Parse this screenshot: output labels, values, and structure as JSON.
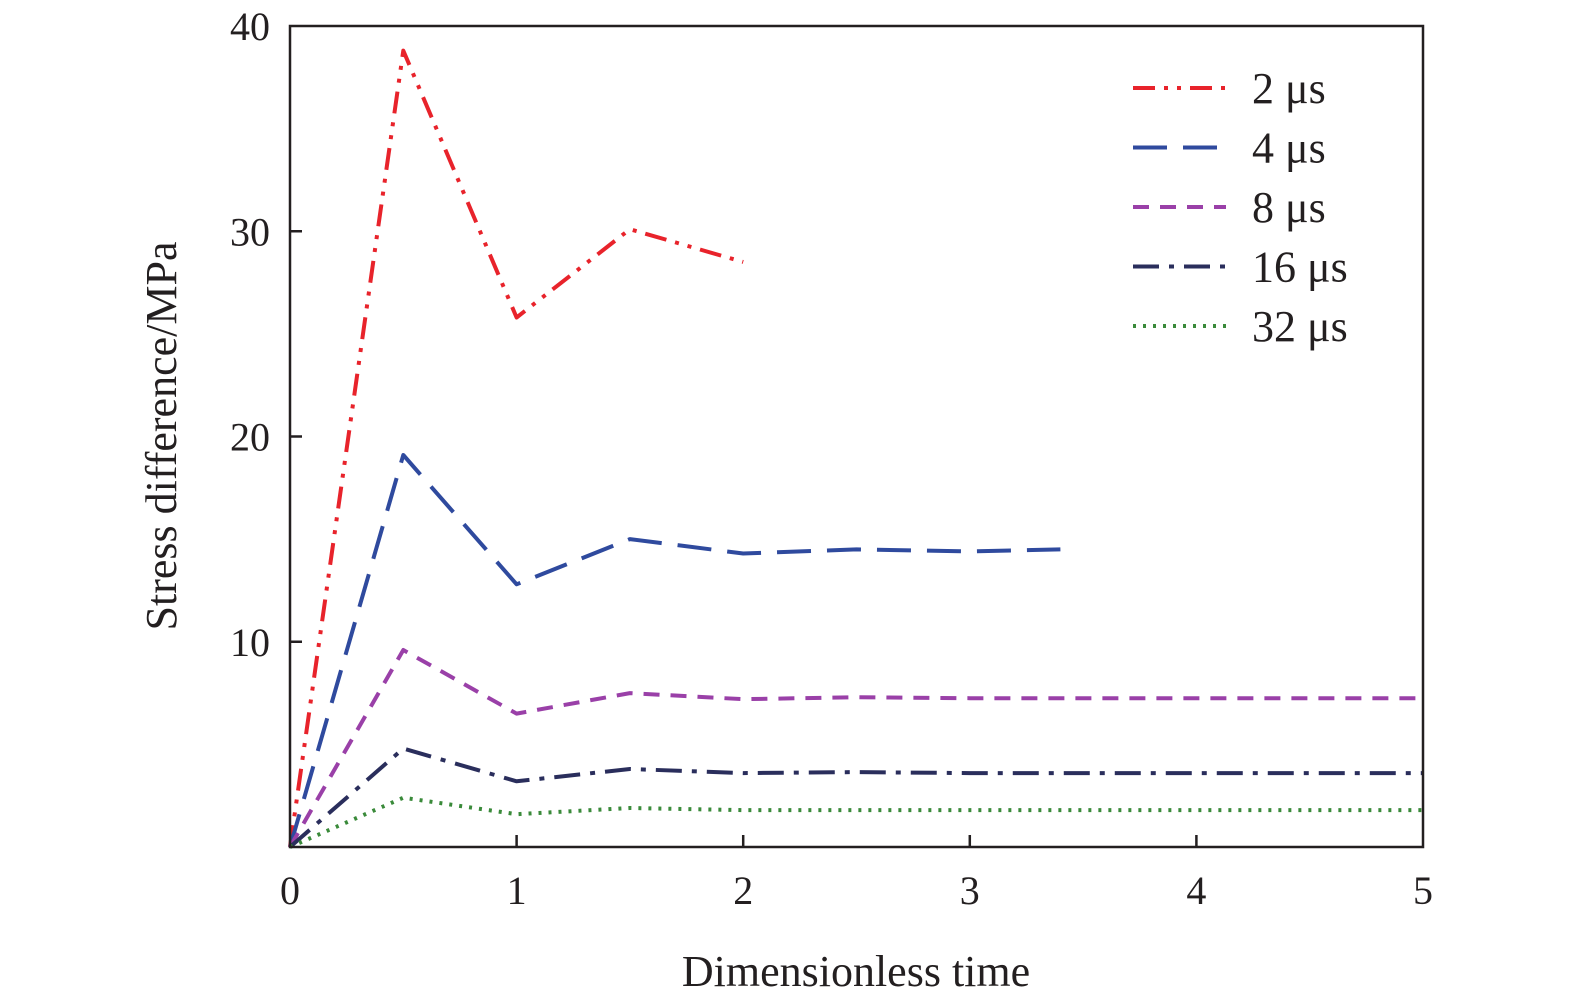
{
  "chart_data": {
    "type": "line",
    "title": "",
    "xlabel": "Dimensionless time",
    "ylabel": "Stress difference/MPa",
    "xlim": [
      0,
      5
    ],
    "ylim": [
      0,
      40
    ],
    "x_ticks": [
      "0",
      "1",
      "2",
      "3",
      "4",
      "5"
    ],
    "y_ticks": [
      "10",
      "20",
      "30",
      "40"
    ],
    "grid": false,
    "legend_position": "top-right",
    "series": [
      {
        "name": "2 μs",
        "color": "#e8232b",
        "style": "dash-dot-dot",
        "x": [
          0,
          0.5,
          1.0,
          1.5,
          2.0
        ],
        "y": [
          0,
          38.8,
          25.8,
          30.1,
          28.5
        ]
      },
      {
        "name": "4 μs",
        "color": "#2f4a9e",
        "style": "long-dash",
        "x": [
          0,
          0.5,
          1.0,
          1.5,
          2.0,
          2.5,
          3.0,
          3.4
        ],
        "y": [
          0,
          19.1,
          12.8,
          15.0,
          14.3,
          14.5,
          14.4,
          14.5
        ]
      },
      {
        "name": "8 μs",
        "color": "#9a40a8",
        "style": "short-dash",
        "x": [
          0,
          0.5,
          1.0,
          1.5,
          2.0,
          2.5,
          3.0,
          3.5,
          4.0,
          4.5,
          5.0
        ],
        "y": [
          0,
          9.6,
          6.5,
          7.5,
          7.2,
          7.3,
          7.25,
          7.25,
          7.25,
          7.25,
          7.25
        ]
      },
      {
        "name": "16 μs",
        "color": "#2a2e5c",
        "style": "dash-dot",
        "x": [
          0,
          0.5,
          1.0,
          1.5,
          2.0,
          2.5,
          3.0,
          3.5,
          4.0,
          4.5,
          5.0
        ],
        "y": [
          0,
          4.8,
          3.2,
          3.8,
          3.6,
          3.65,
          3.6,
          3.6,
          3.6,
          3.6,
          3.6
        ]
      },
      {
        "name": "32 μs",
        "color": "#3a8a3a",
        "style": "dotted",
        "x": [
          0,
          0.5,
          1.0,
          1.5,
          2.0,
          2.5,
          3.0,
          3.5,
          4.0,
          4.5,
          5.0
        ],
        "y": [
          0,
          2.4,
          1.6,
          1.9,
          1.8,
          1.8,
          1.8,
          1.8,
          1.8,
          1.8,
          1.8
        ]
      }
    ]
  }
}
